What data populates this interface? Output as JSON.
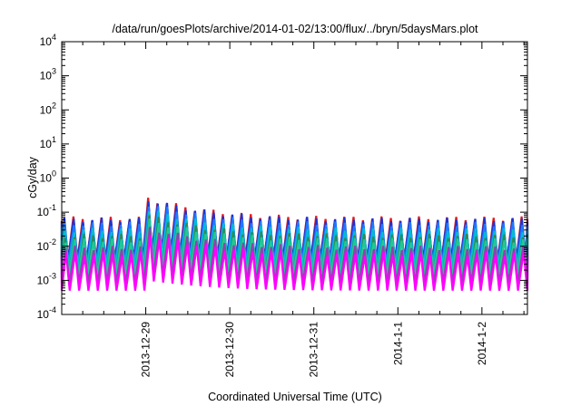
{
  "chart_data": {
    "type": "line",
    "title": "/data/run/goesPlots/archive/2014-01-02/13:00/flux/../bryn/5daysMars.plot",
    "xlabel": "Coordinated Universal Time (UTC)",
    "ylabel": "cGy/day",
    "yscale": "log",
    "ylim": [
      0.0001,
      10000
    ],
    "xlim": [
      "2013-12-28 00:00",
      "2014-01-02 13:00"
    ],
    "grid": false,
    "legend": "none",
    "y_ticks": [
      {
        "base": "10",
        "exp": "4",
        "value": 10000
      },
      {
        "base": "10",
        "exp": "3",
        "value": 1000
      },
      {
        "base": "10",
        "exp": "2",
        "value": 100
      },
      {
        "base": "10",
        "exp": "1",
        "value": 10
      },
      {
        "base": "10",
        "exp": "0",
        "value": 1
      },
      {
        "base": "10",
        "exp": "-1",
        "value": 0.1
      },
      {
        "base": "10",
        "exp": "-2",
        "value": 0.01
      },
      {
        "base": "10",
        "exp": "-3",
        "value": 0.001
      },
      {
        "base": "10",
        "exp": "-4",
        "value": 0.0001
      }
    ],
    "x_ticks": [
      {
        "label": "2013-12-29",
        "value": "2013-12-29 00:00"
      },
      {
        "label": "2013-12-30",
        "value": "2013-12-30 00:00"
      },
      {
        "label": "2013-12-31",
        "value": "2013-12-31 00:00"
      },
      {
        "label": "2014-1-1",
        "value": "2014-01-01 00:00"
      },
      {
        "label": "2014-1-2",
        "value": "2014-01-02 00:00"
      }
    ],
    "cycle_hours": 2.667,
    "enhancement": {
      "start": "2013-12-29 00:00",
      "peak_factor": 4.0,
      "decay_hours": 12
    },
    "series": [
      {
        "color": "#e41a1c",
        "peak": 0.065,
        "trough": 0.0035
      },
      {
        "color": "#2233cc",
        "peak": 0.06,
        "trough": 0.004
      },
      {
        "color": "#1f78ff",
        "peak": 0.045,
        "trough": 0.003
      },
      {
        "color": "#00bcd4",
        "peak": 0.03,
        "trough": 0.0025
      },
      {
        "color": "#2e8b57",
        "peak": 0.02,
        "trough": 0.0012
      },
      {
        "color": "#20c997",
        "peak": 0.015,
        "trough": 0.0015
      },
      {
        "color": "#8e44ad",
        "peak": 0.009,
        "trough": 0.0008
      },
      {
        "color": "#ff00ff",
        "peak": 0.006,
        "trough": 0.0005
      }
    ]
  }
}
